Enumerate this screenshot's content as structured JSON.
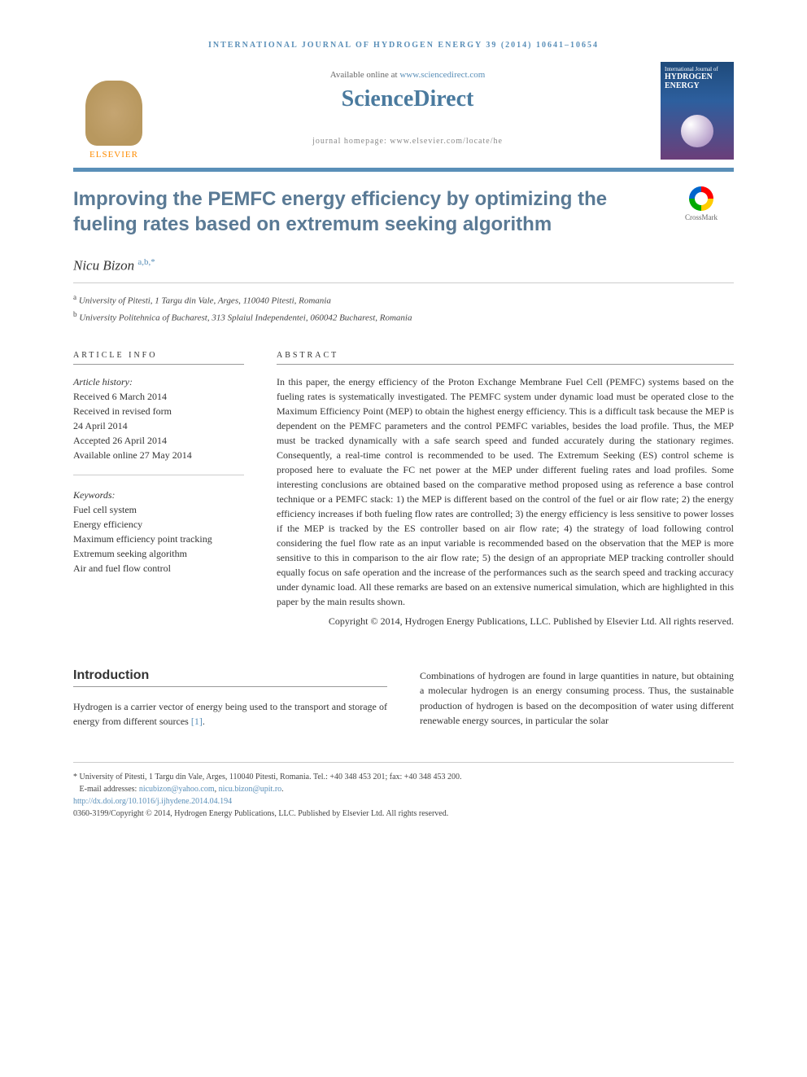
{
  "header": {
    "journal_ref": "INTERNATIONAL JOURNAL OF HYDROGEN ENERGY 39 (2014) 10641–10654",
    "available_text": "Available online at ",
    "available_link": "www.sciencedirect.com",
    "sciencedirect": "ScienceDirect",
    "homepage_label": "journal homepage: www.elsevier.com/locate/he",
    "elsevier": "ELSEVIER",
    "cover": {
      "line1": "International Journal of",
      "line2": "HYDROGEN",
      "line3": "ENERGY"
    }
  },
  "title": "Improving the PEMFC energy efficiency by optimizing the fueling rates based on extremum seeking algorithm",
  "crossmark": "CrossMark",
  "author": {
    "name": "Nicu Bizon",
    "marks": "a,b,*"
  },
  "affiliations": {
    "a": "University of Pitesti, 1 Targu din Vale, Arges, 110040 Pitesti, Romania",
    "b": "University Politehnica of Bucharest, 313 Splaiul Independentei, 060042 Bucharest, Romania"
  },
  "article_info": {
    "label": "ARTICLE INFO",
    "history_label": "Article history:",
    "history": [
      "Received 6 March 2014",
      "Received in revised form",
      "24 April 2014",
      "Accepted 26 April 2014",
      "Available online 27 May 2014"
    ],
    "keywords_label": "Keywords:",
    "keywords": [
      "Fuel cell system",
      "Energy efficiency",
      "Maximum efficiency point tracking",
      "Extremum seeking algorithm",
      "Air and fuel flow control"
    ]
  },
  "abstract": {
    "label": "ABSTRACT",
    "text": "In this paper, the energy efficiency of the Proton Exchange Membrane Fuel Cell (PEMFC) systems based on the fueling rates is systematically investigated. The PEMFC system under dynamic load must be operated close to the Maximum Efficiency Point (MEP) to obtain the highest energy efficiency. This is a difficult task because the MEP is dependent on the PEMFC parameters and the control PEMFC variables, besides the load profile. Thus, the MEP must be tracked dynamically with a safe search speed and funded accurately during the stationary regimes. Consequently, a real-time control is recommended to be used. The Extremum Seeking (ES) control scheme is proposed here to evaluate the FC net power at the MEP under different fueling rates and load profiles. Some interesting conclusions are obtained based on the comparative method proposed using as reference a base control technique or a PEMFC stack: 1) the MEP is different based on the control of the fuel or air flow rate; 2) the energy efficiency increases if both fueling flow rates are controlled; 3) the energy efficiency is less sensitive to power losses if the MEP is tracked by the ES controller based on air flow rate; 4) the strategy of load following control considering the fuel flow rate as an input variable is recommended based on the observation that the MEP is more sensitive to this in comparison to the air flow rate; 5) the design of an appropriate MEP tracking controller should equally focus on safe operation and the increase of the performances such as the search speed and tracking accuracy under dynamic load. All these remarks are based on an extensive numerical simulation, which are highlighted in this paper by the main results shown.",
    "copyright": "Copyright © 2014, Hydrogen Energy Publications, LLC. Published by Elsevier Ltd. All rights reserved."
  },
  "body": {
    "intro_heading": "Introduction",
    "col1": "Hydrogen is a carrier vector of energy being used to the transport and storage of energy from different sources ",
    "col1_ref": "[1]",
    "col1_end": ".",
    "col2": "Combinations of hydrogen are found in large quantities in nature, but obtaining a molecular hydrogen is an energy consuming process. Thus, the sustainable production of hydrogen is based on the decomposition of water using different renewable energy sources, in particular the solar"
  },
  "footer": {
    "corresp": "* University of Pitesti, 1 Targu din Vale, Arges, 110040 Pitesti, Romania. Tel.: +40 348 453 201; fax: +40 348 453 200.",
    "email_label": "E-mail addresses: ",
    "email1": "nicubizon@yahoo.com",
    "email_sep": ", ",
    "email2": "nicu.bizon@upit.ro",
    "email_end": ".",
    "doi": "http://dx.doi.org/10.1016/j.ijhydene.2014.04.194",
    "issn": "0360-3199/Copyright © 2014, Hydrogen Energy Publications, LLC. Published by Elsevier Ltd. All rights reserved."
  },
  "colors": {
    "accent": "#5a8fb8",
    "title_color": "#5a7a95",
    "text": "#333333",
    "orange": "#ff8c00"
  }
}
